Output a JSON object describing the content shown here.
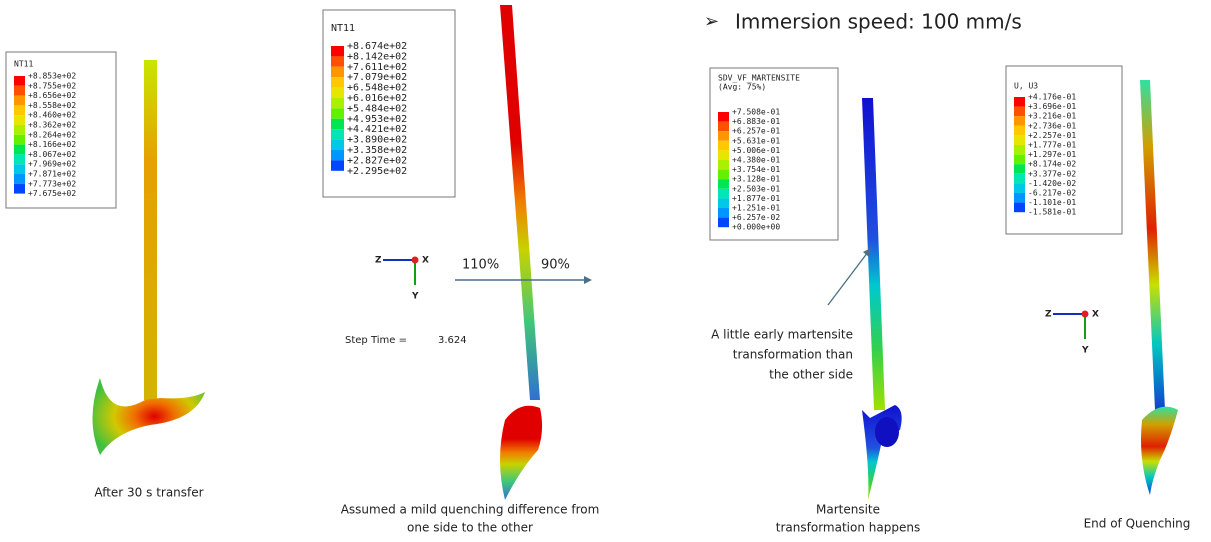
{
  "header": {
    "bullet_text": "Immersion speed: 100 mm/s"
  },
  "legends": [
    {
      "title": [
        "NT11"
      ],
      "labels": [
        "+8.853e+02",
        "+8.755e+02",
        "+8.656e+02",
        "+8.558e+02",
        "+8.460e+02",
        "+8.362e+02",
        "+8.264e+02",
        "+8.166e+02",
        "+8.067e+02",
        "+7.969e+02",
        "+7.871e+02",
        "+7.773e+02",
        "+7.675e+02"
      ]
    },
    {
      "title": [
        "NT11"
      ],
      "labels": [
        "+8.674e+02",
        "+8.142e+02",
        "+7.611e+02",
        "+7.079e+02",
        "+6.548e+02",
        "+6.016e+02",
        "+5.484e+02",
        "+4.953e+02",
        "+4.421e+02",
        "+3.890e+02",
        "+3.358e+02",
        "+2.827e+02",
        "+2.295e+02"
      ]
    },
    {
      "title": [
        "SDV_VF_MARTENSITE",
        "(Avg: 75%)"
      ],
      "labels": [
        "+7.508e-01",
        "+6.883e-01",
        "+6.257e-01",
        "+5.631e-01",
        "+5.006e-01",
        "+4.380e-01",
        "+3.754e-01",
        "+3.128e-01",
        "+2.503e-01",
        "+1.877e-01",
        "+1.251e-01",
        "+6.257e-02",
        "+0.000e+00"
      ]
    },
    {
      "title": [
        "U, U3"
      ],
      "labels": [
        "+4.176e-01",
        "+3.696e-01",
        "+3.216e-01",
        "+2.736e-01",
        "+2.257e-01",
        "+1.777e-01",
        "+1.297e-01",
        "+8.174e-02",
        "+3.377e-02",
        "-1.420e-02",
        "-6.217e-02",
        "-1.101e-01",
        "-1.581e-01"
      ]
    }
  ],
  "panels": [
    {
      "caption": [
        "After 30 s transfer"
      ]
    },
    {
      "caption": [
        "Assumed a mild quenching difference from",
        "one side to the other"
      ]
    },
    {
      "caption": [
        "Martensite",
        "transformation happens"
      ]
    },
    {
      "caption": [
        "End of Quenching"
      ]
    }
  ],
  "annotations": {
    "left_pct": "110%",
    "right_pct": "90%",
    "step_time_label": "Step Time =",
    "step_time_value": "3.624",
    "note": [
      "A little early martensite",
      "transformation than",
      "the other side"
    ]
  },
  "triads": [
    {
      "z": "Z",
      "y": "Y",
      "x": "X"
    },
    {
      "z": "Z",
      "y": "Y",
      "x": "X"
    }
  ]
}
